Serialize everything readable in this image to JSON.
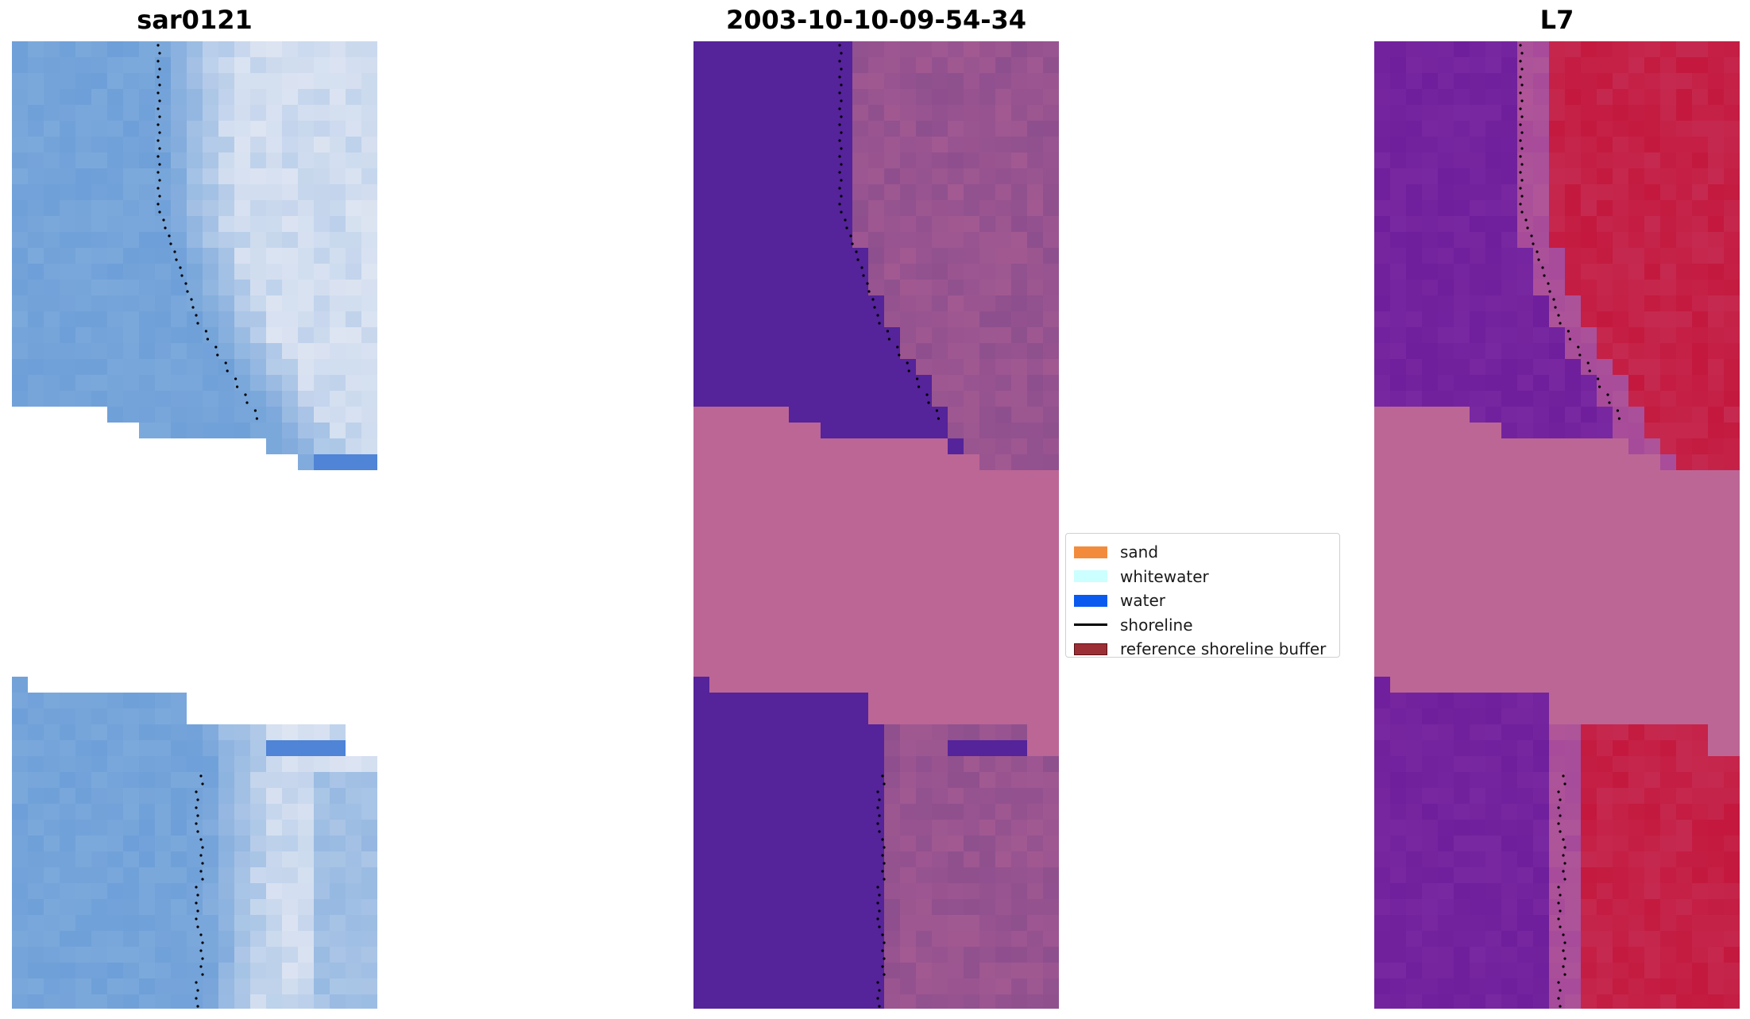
{
  "panels": {
    "left": {
      "title": "sar0121"
    },
    "middle": {
      "title": "2003-10-10-09-54-34"
    },
    "right": {
      "title": "L7"
    }
  },
  "legend": {
    "items": [
      {
        "label": "sand",
        "color": "#f28c3c",
        "kind": "patch"
      },
      {
        "label": "whitewater",
        "color": "#ccffff",
        "kind": "patch"
      },
      {
        "label": "water",
        "color": "#0a5af0",
        "kind": "patch"
      },
      {
        "label": "shoreline",
        "color": "#000000",
        "kind": "line"
      },
      {
        "label": "reference shoreline buffer",
        "color": "#9b2f35",
        "kind": "patch"
      }
    ]
  },
  "colors": {
    "left_water": "#6e9fd8",
    "left_bright": "#dde4f2",
    "mid_water_class": "#55239a",
    "mid_land_class": "#8e4f8e",
    "nodata_fill": "#bc6696",
    "right_water": "#6f1e9c",
    "right_land": "#c4183e",
    "shoreline_points": "#000000"
  }
}
